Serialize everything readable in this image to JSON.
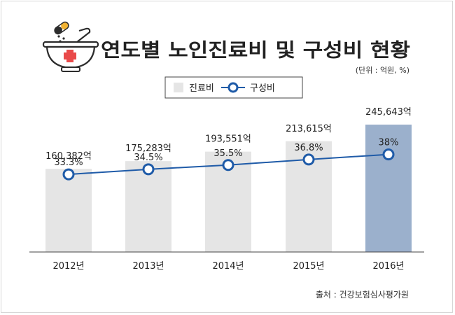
{
  "title": "연도별 노인진료비 및 구성비 현황",
  "unit_note": "(단위 : 억원, %)",
  "source": "출처 : 건강보험심사평가원",
  "icon": "medicine-bowl-icon",
  "colors": {
    "bar": "#e5e5e5",
    "bar_highlight": "#9bb0cc",
    "line": "#1f5ba8",
    "marker_fill": "#ffffff",
    "marker_stroke": "#1f5ba8",
    "text": "#222222",
    "baseline": "#444444"
  },
  "chart_data": {
    "type": "bar",
    "categories": [
      "2012년",
      "2013년",
      "2014년",
      "2015년",
      "2016년"
    ],
    "legend_position": "top-right",
    "grid": false,
    "series": [
      {
        "name": "진료비",
        "type": "bar",
        "values": [
          160382,
          175283,
          193551,
          213615,
          245643
        ],
        "labels": [
          "160,382억",
          "175,283억",
          "193,551억",
          "213,615억",
          "245,643억"
        ],
        "highlight_index": 4
      },
      {
        "name": "구성비",
        "type": "line",
        "values": [
          33.3,
          34.5,
          35.5,
          36.8,
          38
        ],
        "labels": [
          "33.3%",
          "34.5%",
          "35.5%",
          "36.8%",
          "38%"
        ]
      }
    ],
    "bar_ylim": [
      0,
      270000
    ],
    "line_ylim": [
      15,
      48
    ]
  }
}
